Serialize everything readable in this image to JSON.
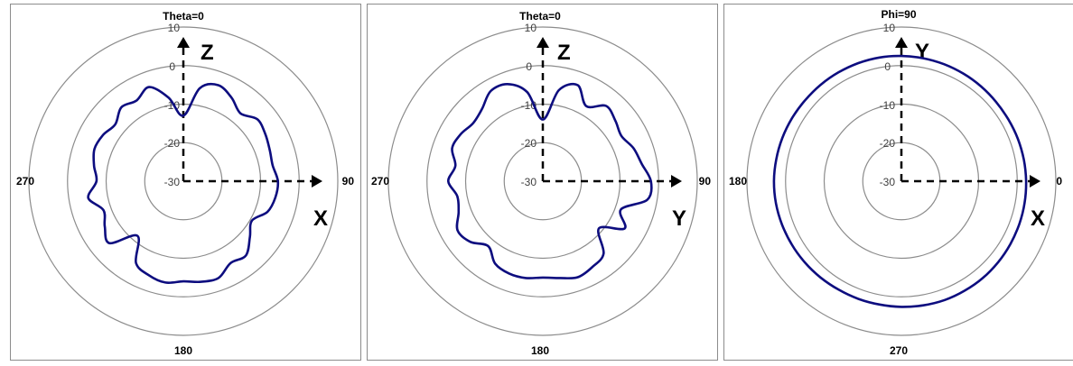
{
  "chart_data": [
    {
      "type": "polar",
      "title": "Theta=0",
      "radial_ticks": [
        "10",
        "0",
        "-10",
        "-20",
        "-30"
      ],
      "rlim": [
        -30,
        10
      ],
      "angle_labels": {
        "top": "",
        "right": "90",
        "bottom": "180",
        "left": "270"
      },
      "axis_labels": {
        "vertical": "Z",
        "horizontal": "X"
      },
      "series_color": "#0d0d7f",
      "angles_deg": [
        0,
        10,
        20,
        30,
        40,
        50,
        60,
        70,
        80,
        90,
        100,
        110,
        120,
        130,
        140,
        150,
        160,
        170,
        180,
        190,
        200,
        210,
        220,
        230,
        240,
        250,
        260,
        270,
        280,
        290,
        300,
        310,
        320,
        330,
        340,
        350
      ],
      "values_db": [
        -13,
        -5.5,
        -3.5,
        -5,
        -7,
        -5,
        -5.5,
        -6.2,
        -6.5,
        -5.5,
        -5.8,
        -6.8,
        -9.5,
        -7.5,
        -4.8,
        -5.5,
        -3.3,
        -3.5,
        -4,
        -3.3,
        -4,
        -5.5,
        -11.5,
        -5,
        -6.5,
        -8,
        -5,
        -7.5,
        -6.5,
        -5.5,
        -6,
        -7,
        -5,
        -5.8,
        -4,
        -8
      ]
    },
    {
      "type": "polar",
      "title": "Theta=0",
      "radial_ticks": [
        "10",
        "0",
        "-10",
        "-20",
        "-30"
      ],
      "rlim": [
        -30,
        10
      ],
      "angle_labels": {
        "top": "",
        "right": "90",
        "bottom": "180",
        "left": "270"
      },
      "axis_labels": {
        "vertical": "Z",
        "horizontal": "Y"
      },
      "series_color": "#0d0d7f",
      "angles_deg": [
        0,
        10,
        20,
        30,
        40,
        50,
        60,
        70,
        80,
        90,
        100,
        110,
        120,
        130,
        140,
        150,
        160,
        170,
        180,
        190,
        200,
        210,
        220,
        230,
        240,
        250,
        260,
        270,
        280,
        290,
        300,
        310,
        320,
        330,
        340,
        350
      ],
      "values_db": [
        -14,
        -6,
        -3.5,
        -7.5,
        -4.5,
        -5.5,
        -6.5,
        -5,
        -4,
        -2,
        -2.5,
        -8.5,
        -5.5,
        -11,
        -5.5,
        -4.3,
        -3.5,
        -4.5,
        -5,
        -4.5,
        -4.5,
        -5.3,
        -8,
        -5.5,
        -4.5,
        -6.8,
        -7.5,
        -5.5,
        -7,
        -5,
        -5.5,
        -6.5,
        -5.5,
        -3,
        -3.2,
        -6.5
      ]
    },
    {
      "type": "polar",
      "title": "Phi=90",
      "radial_ticks": [
        "10",
        "0",
        "-10",
        "-20",
        "-30"
      ],
      "rlim": [
        -30,
        10
      ],
      "angle_labels": {
        "top": "",
        "right": "0",
        "bottom": "270",
        "left": "180"
      },
      "axis_labels": {
        "vertical": "Y",
        "horizontal": "X"
      },
      "series_color": "#0d0d7f",
      "angles_deg": [
        0,
        10,
        20,
        30,
        40,
        50,
        60,
        70,
        80,
        90,
        100,
        110,
        120,
        130,
        140,
        150,
        160,
        170,
        180,
        190,
        200,
        210,
        220,
        230,
        240,
        250,
        260,
        270,
        280,
        290,
        300,
        310,
        320,
        330,
        340,
        350
      ],
      "values_db": [
        2.5,
        2.4,
        2.3,
        2.2,
        2.1,
        2,
        2,
        2.1,
        2.2,
        2.3,
        2.4,
        2.5,
        2.6,
        2.7,
        2.8,
        2.8,
        2.8,
        2.7,
        2.6,
        2.5,
        2.5,
        2.5,
        2.6,
        2.7,
        2.8,
        2.9,
        3,
        3,
        2.9,
        2.8,
        2.7,
        2.6,
        2.6,
        2.6,
        2.6,
        2.6
      ]
    }
  ]
}
